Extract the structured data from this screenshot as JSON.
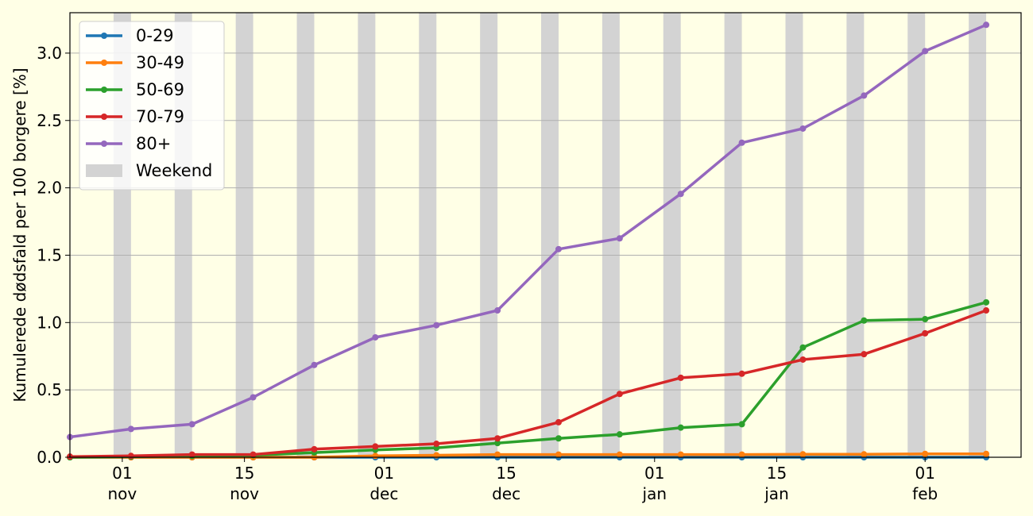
{
  "chart_data": {
    "type": "line",
    "title": "",
    "xlabel": "",
    "ylabel": "Kumulerede dødsfald per 100 borgere [%]",
    "x": [
      "2020-10-26",
      "2020-11-02",
      "2020-11-09",
      "2020-11-16",
      "2020-11-23",
      "2020-11-30",
      "2020-12-07",
      "2020-12-14",
      "2020-12-21",
      "2020-12-28",
      "2021-01-04",
      "2021-01-11",
      "2021-01-18",
      "2021-01-25",
      "2021-02-01",
      "2021-02-08"
    ],
    "series": [
      {
        "name": "0-29",
        "color": "#1f77b4",
        "values": [
          0.0,
          0.0,
          0.0,
          0.0,
          0.0,
          0.0,
          0.0,
          0.0,
          0.0,
          0.0,
          0.0,
          0.0,
          0.0,
          0.0,
          0.0,
          0.0
        ]
      },
      {
        "name": "30-49",
        "color": "#ff7f0e",
        "values": [
          0.0,
          0.0,
          0.0,
          0.0,
          0.0,
          0.01,
          0.015,
          0.02,
          0.02,
          0.02,
          0.02,
          0.02,
          0.022,
          0.022,
          0.025,
          0.025
        ]
      },
      {
        "name": "50-69",
        "color": "#2ca02c",
        "values": [
          0.0,
          0.005,
          0.01,
          0.015,
          0.035,
          0.055,
          0.07,
          0.105,
          0.14,
          0.17,
          0.22,
          0.245,
          0.815,
          1.015,
          1.025,
          1.15
        ]
      },
      {
        "name": "70-79",
        "color": "#d62728",
        "values": [
          0.005,
          0.01,
          0.02,
          0.02,
          0.06,
          0.08,
          0.1,
          0.14,
          0.26,
          0.47,
          0.59,
          0.62,
          0.725,
          0.765,
          0.92,
          1.09
        ]
      },
      {
        "name": "80+",
        "color": "#9467bd",
        "values": [
          0.15,
          0.21,
          0.245,
          0.445,
          0.685,
          0.89,
          0.98,
          1.09,
          1.545,
          1.625,
          1.955,
          2.335,
          2.44,
          2.685,
          3.015,
          3.21
        ]
      }
    ],
    "weekend_label": "Weekend",
    "weekend_color": "#d3d3d3",
    "xlim": [
      "2020-10-26",
      "2021-02-12"
    ],
    "ylim": [
      0,
      3.3
    ],
    "y_ticks": [
      "0.0",
      "0.5",
      "1.0",
      "1.5",
      "2.0",
      "2.5",
      "3.0"
    ],
    "x_ticks": [
      {
        "date": "2020-11-01",
        "day": "01",
        "month": "nov"
      },
      {
        "date": "2020-11-15",
        "day": "15",
        "month": "nov"
      },
      {
        "date": "2020-12-01",
        "day": "01",
        "month": "dec"
      },
      {
        "date": "2020-12-15",
        "day": "15",
        "month": "dec"
      },
      {
        "date": "2021-01-01",
        "day": "01",
        "month": "jan"
      },
      {
        "date": "2021-01-15",
        "day": "15",
        "month": "jan"
      },
      {
        "date": "2021-02-01",
        "day": "01",
        "month": "feb"
      }
    ],
    "grid": "y",
    "legend_position": "top-left",
    "background_color": "#ffffe6"
  }
}
